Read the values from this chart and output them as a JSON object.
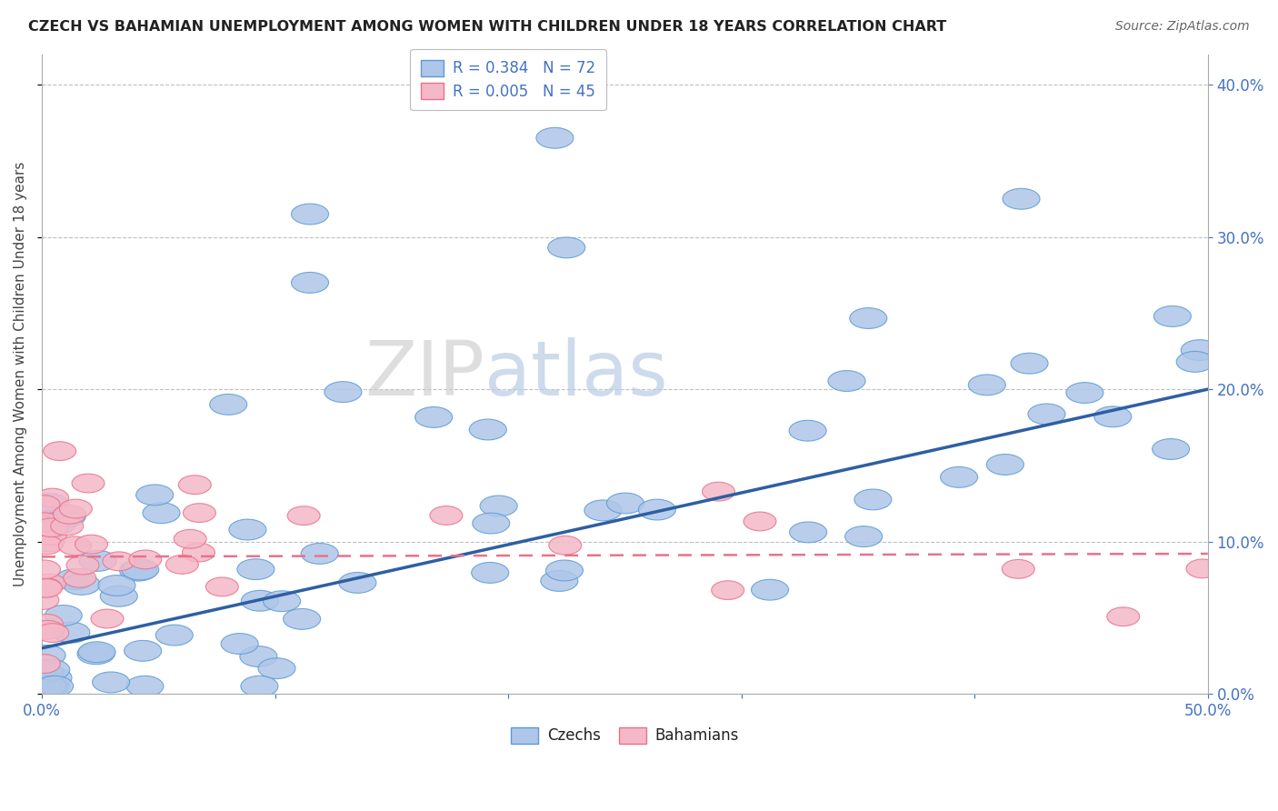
{
  "title": "CZECH VS BAHAMIAN UNEMPLOYMENT AMONG WOMEN WITH CHILDREN UNDER 18 YEARS CORRELATION CHART",
  "source": "Source: ZipAtlas.com",
  "ylabel": "Unemployment Among Women with Children Under 18 years",
  "xlim": [
    0.0,
    0.5
  ],
  "ylim": [
    0.0,
    0.42
  ],
  "yticks": [
    0.0,
    0.1,
    0.2,
    0.3,
    0.4
  ],
  "czech_color": "#aec6e8",
  "czech_edge_color": "#5b9bd5",
  "bahamian_color": "#f4b8c8",
  "bahamian_edge_color": "#e8728a",
  "trend_czech_color": "#2e5fa3",
  "trend_bahamian_color": "#e8728a",
  "legend_R_czech": "R = 0.384",
  "legend_N_czech": "N = 72",
  "legend_R_bahamian": "R = 0.005",
  "legend_N_bahamian": "N = 45",
  "watermark_zip": "ZIP",
  "watermark_atlas": "atlas",
  "czech_trend_x0": 0.0,
  "czech_trend_y0": 0.03,
  "czech_trend_x1": 0.5,
  "czech_trend_y1": 0.2,
  "bah_trend_x0": 0.0,
  "bah_trend_y0": 0.09,
  "bah_trend_x1": 0.5,
  "bah_trend_y1": 0.092,
  "background_color": "#ffffff",
  "grid_color": "#c0c0c0"
}
